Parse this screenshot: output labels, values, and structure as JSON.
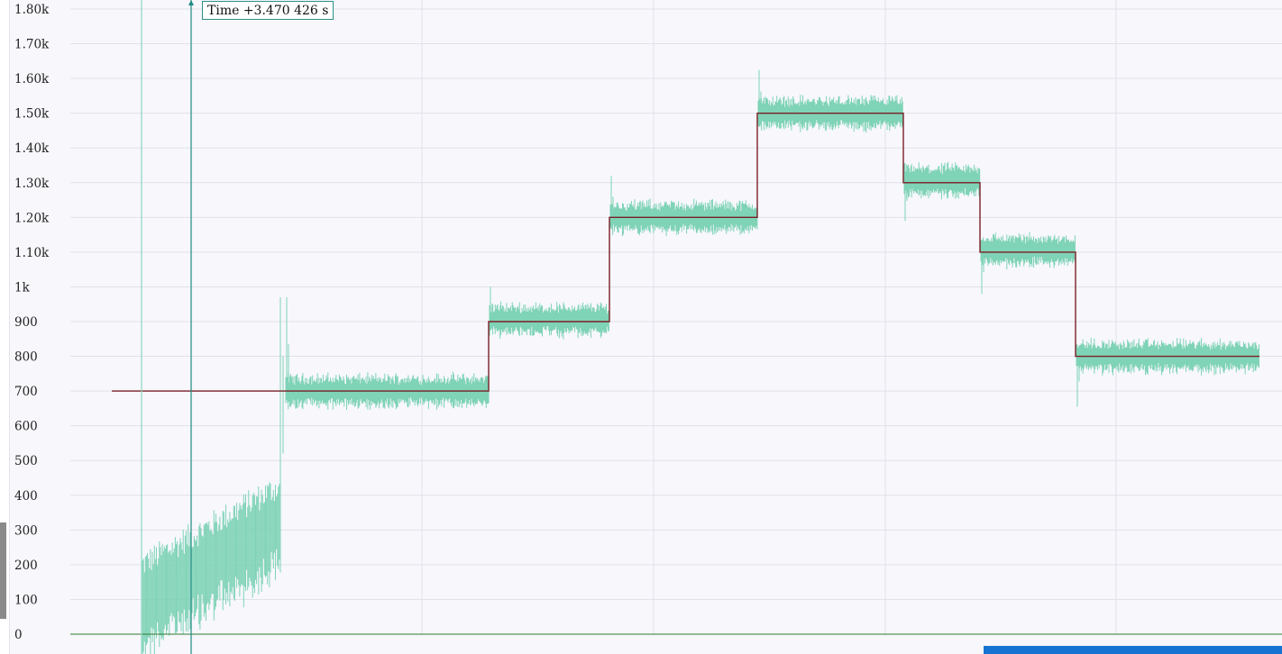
{
  "tooltip": {
    "time_label": "Time +3.470 426 s"
  },
  "colors": {
    "background": "#f7f7fc",
    "grid": "#e1e1ea",
    "signal": "#7fd3b6",
    "setpoint": "#7a1f26",
    "cursor": "#1e8a82",
    "cursor_light": "#8fd6c2",
    "zero_line": "#2e7d32",
    "bottom_panel": "#1673d1"
  },
  "chart_data": {
    "type": "line",
    "ylim": [
      0,
      1800
    ],
    "y_ticks": [
      0,
      100,
      200,
      300,
      400,
      500,
      600,
      700,
      800,
      900,
      1000,
      1100,
      1200,
      1300,
      1400,
      1500,
      1600,
      1700,
      1800
    ],
    "y_tick_labels": [
      "0",
      "100",
      "200",
      "300",
      "400",
      "500",
      "600",
      "700",
      "800",
      "900",
      "1k",
      "1.10k",
      "1.20k",
      "1.30k",
      "1.40k",
      "1.50k",
      "1.60k",
      "1.70k",
      "1.80k"
    ],
    "series": [
      {
        "role": "setpoint",
        "color": "#7a1f26",
        "steps": [
          {
            "value": 700
          },
          {
            "value": 900
          },
          {
            "value": 1200
          },
          {
            "value": 1500
          },
          {
            "value": 1300
          },
          {
            "value": 1100
          },
          {
            "value": 800
          }
        ]
      },
      {
        "role": "measured",
        "color": "#7fd3b6",
        "ramp": {
          "from": 100,
          "to": 330
        },
        "levels": [
          {
            "mean": 700,
            "noise": 45,
            "overshoot": 970
          },
          {
            "mean": 905,
            "noise": 45,
            "overshoot": 1000
          },
          {
            "mean": 1200,
            "noise": 45,
            "overshoot": 1320
          },
          {
            "mean": 1500,
            "noise": 45,
            "overshoot": 1625
          },
          {
            "mean": 1305,
            "noise": 45,
            "overshoot": 1190
          },
          {
            "mean": 1105,
            "noise": 45,
            "overshoot": 980
          },
          {
            "mean": 800,
            "noise": 45,
            "overshoot": 655
          }
        ]
      }
    ]
  }
}
